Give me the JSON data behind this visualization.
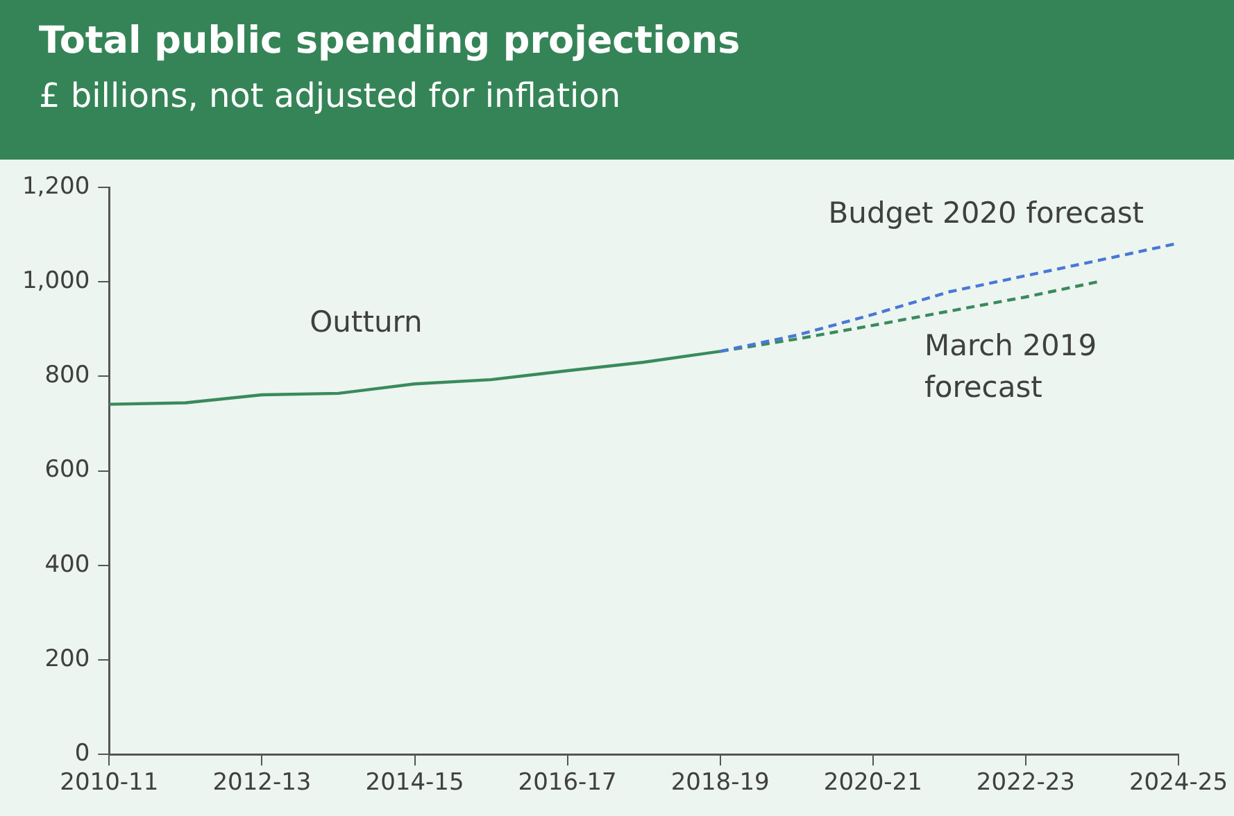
{
  "chart_data": {
    "type": "line",
    "title": "Total public spending projections",
    "subtitle": "£ billions, not adjusted for inflation",
    "categories": [
      "2010-11",
      null,
      "2012-13",
      null,
      "2014-15",
      null,
      "2016-17",
      null,
      "2018-19",
      null,
      "2020-21",
      null,
      "2022-23",
      null,
      "2024-25"
    ],
    "series": [
      {
        "name": "Outturn",
        "color": "#3a8a5c",
        "line_style": "solid",
        "values": [
          741,
          744,
          761,
          764,
          784,
          793,
          812,
          830,
          853,
          null,
          null,
          null,
          null,
          null,
          null
        ]
      },
      {
        "name": "Budget 2020 forecast",
        "color": "#4a78d6",
        "line_style": "dashed",
        "values": [
          null,
          null,
          null,
          null,
          null,
          null,
          null,
          null,
          853,
          887,
          931,
          979,
          1013,
          1047,
          1082
        ]
      },
      {
        "name": "March 2019 forecast",
        "color": "#3a8a5c",
        "line_style": "dashed",
        "values": [
          null,
          null,
          null,
          null,
          null,
          null,
          null,
          null,
          853,
          879,
          908,
          938,
          968,
          1002,
          null
        ]
      }
    ],
    "ylim": [
      0,
      1200
    ],
    "yticks": [
      0,
      200,
      400,
      600,
      800,
      {
        "value": 1000,
        "label": "1,000"
      },
      {
        "value": 1200,
        "label": "1,200"
      }
    ],
    "grid": false,
    "legend": false,
    "marker": "none"
  }
}
